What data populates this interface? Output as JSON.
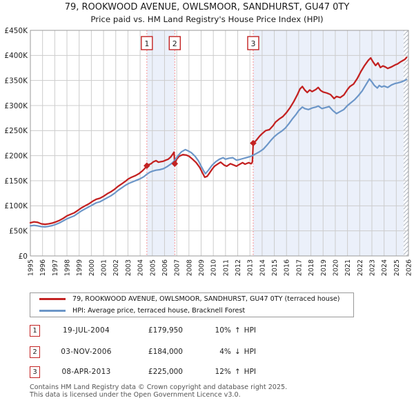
{
  "title": {
    "line1": "79, ROOKWOOD AVENUE, OWLSMOOR, SANDHURST, GU47 0TY",
    "line2": "Price paid vs. HM Land Registry's House Price Index (HPI)"
  },
  "chart_data": {
    "type": "line",
    "x_axis": {
      "min": 1995,
      "max": 2026,
      "tick_labels": [
        "1995",
        "1996",
        "1997",
        "1998",
        "1999",
        "2000",
        "2001",
        "2002",
        "2003",
        "2004",
        "2005",
        "2006",
        "2007",
        "2008",
        "2009",
        "2010",
        "2011",
        "2012",
        "2013",
        "2014",
        "2015",
        "2016",
        "2017",
        "2018",
        "2019",
        "2020",
        "2021",
        "2022",
        "2023",
        "2024",
        "2025",
        "2026"
      ]
    },
    "y_axis": {
      "max_k": 450,
      "ticks": [
        {
          "v": 0,
          "label": "£0"
        },
        {
          "v": 50,
          "label": "£50K"
        },
        {
          "v": 100,
          "label": "£100K"
        },
        {
          "v": 150,
          "label": "£150K"
        },
        {
          "v": 200,
          "label": "£200K"
        },
        {
          "v": 250,
          "label": "£250K"
        },
        {
          "v": 300,
          "label": "£300K"
        },
        {
          "v": 350,
          "label": "£350K"
        },
        {
          "v": 400,
          "label": "£400K"
        },
        {
          "v": 450,
          "label": "£450K"
        }
      ]
    },
    "grid": true,
    "colors": {
      "grid": "#cccccc",
      "border": "#999999",
      "band": "#ebf0fa",
      "sale_line": "#fa7070",
      "flag_border": "#c32222",
      "flag_text": "#222222",
      "hatch_line": "#b0b6bf",
      "hatch_bg": "#fbfcfe"
    },
    "shaded_bands": [
      [
        2004.55,
        2006.84
      ],
      [
        2013.27,
        2026
      ]
    ],
    "hatch_band": [
      2025.6,
      2026
    ],
    "series": [
      {
        "name": "property",
        "color": "#c32222",
        "width": 2.3,
        "points": [
          [
            1995.0,
            66
          ],
          [
            1995.3,
            68
          ],
          [
            1995.6,
            67
          ],
          [
            1995.9,
            64
          ],
          [
            1996.2,
            63
          ],
          [
            1996.5,
            64
          ],
          [
            1996.8,
            65.5
          ],
          [
            1997.1,
            68
          ],
          [
            1997.4,
            71
          ],
          [
            1997.7,
            75
          ],
          [
            1998.0,
            80
          ],
          [
            1998.3,
            83
          ],
          [
            1998.6,
            86
          ],
          [
            1998.9,
            91
          ],
          [
            1999.2,
            96
          ],
          [
            1999.5,
            100
          ],
          [
            1999.8,
            104
          ],
          [
            2000.1,
            109
          ],
          [
            2000.4,
            113
          ],
          [
            2000.7,
            115
          ],
          [
            2001.0,
            119
          ],
          [
            2001.3,
            124
          ],
          [
            2001.6,
            128
          ],
          [
            2001.9,
            133
          ],
          [
            2002.2,
            139
          ],
          [
            2002.5,
            144
          ],
          [
            2002.8,
            149
          ],
          [
            2003.0,
            153
          ],
          [
            2003.3,
            157
          ],
          [
            2003.6,
            160
          ],
          [
            2003.9,
            164
          ],
          [
            2004.2,
            170
          ],
          [
            2004.4,
            175
          ],
          [
            2004.55,
            180
          ],
          [
            2004.7,
            182
          ],
          [
            2004.9,
            184
          ],
          [
            2005.1,
            188
          ],
          [
            2005.3,
            190
          ],
          [
            2005.5,
            187
          ],
          [
            2005.7,
            188
          ],
          [
            2005.9,
            189
          ],
          [
            2006.1,
            191
          ],
          [
            2006.3,
            193
          ],
          [
            2006.5,
            197
          ],
          [
            2006.7,
            204
          ],
          [
            2006.78,
            207
          ],
          [
            2006.84,
            184
          ],
          [
            2007.0,
            193
          ],
          [
            2007.2,
            199
          ],
          [
            2007.5,
            202
          ],
          [
            2007.8,
            201
          ],
          [
            2008.0,
            199
          ],
          [
            2008.3,
            193
          ],
          [
            2008.6,
            186
          ],
          [
            2008.9,
            176
          ],
          [
            2009.1,
            166
          ],
          [
            2009.3,
            157
          ],
          [
            2009.5,
            159
          ],
          [
            2009.7,
            166
          ],
          [
            2009.9,
            173
          ],
          [
            2010.1,
            179
          ],
          [
            2010.4,
            184
          ],
          [
            2010.6,
            187
          ],
          [
            2010.9,
            181
          ],
          [
            2011.1,
            179
          ],
          [
            2011.4,
            184
          ],
          [
            2011.6,
            182
          ],
          [
            2011.9,
            179
          ],
          [
            2012.1,
            182
          ],
          [
            2012.4,
            186
          ],
          [
            2012.6,
            183
          ],
          [
            2012.9,
            186
          ],
          [
            2013.1,
            184
          ],
          [
            2013.2,
            187
          ],
          [
            2013.27,
            225
          ],
          [
            2013.5,
            230
          ],
          [
            2013.8,
            239
          ],
          [
            2014.0,
            244
          ],
          [
            2014.3,
            250
          ],
          [
            2014.6,
            252
          ],
          [
            2014.9,
            260
          ],
          [
            2015.1,
            267
          ],
          [
            2015.4,
            273
          ],
          [
            2015.7,
            278
          ],
          [
            2016.0,
            286
          ],
          [
            2016.3,
            296
          ],
          [
            2016.6,
            308
          ],
          [
            2016.9,
            322
          ],
          [
            2017.1,
            333
          ],
          [
            2017.3,
            338
          ],
          [
            2017.5,
            331
          ],
          [
            2017.7,
            326
          ],
          [
            2017.9,
            331
          ],
          [
            2018.1,
            328
          ],
          [
            2018.4,
            332
          ],
          [
            2018.6,
            336
          ],
          [
            2018.8,
            330
          ],
          [
            2019.0,
            327
          ],
          [
            2019.3,
            325
          ],
          [
            2019.6,
            322
          ],
          [
            2019.9,
            314
          ],
          [
            2020.1,
            318
          ],
          [
            2020.4,
            316
          ],
          [
            2020.7,
            321
          ],
          [
            2021.0,
            332
          ],
          [
            2021.2,
            338
          ],
          [
            2021.5,
            343
          ],
          [
            2021.8,
            354
          ],
          [
            2022.1,
            368
          ],
          [
            2022.4,
            380
          ],
          [
            2022.7,
            390
          ],
          [
            2022.9,
            395
          ],
          [
            2023.1,
            387
          ],
          [
            2023.3,
            380
          ],
          [
            2023.5,
            385
          ],
          [
            2023.7,
            376
          ],
          [
            2023.9,
            379
          ],
          [
            2024.1,
            377
          ],
          [
            2024.3,
            374
          ],
          [
            2024.6,
            377
          ],
          [
            2024.9,
            381
          ],
          [
            2025.1,
            383
          ],
          [
            2025.4,
            388
          ],
          [
            2025.7,
            392
          ],
          [
            2025.85,
            396
          ]
        ]
      },
      {
        "name": "hpi",
        "color": "#6c96c8",
        "width": 2.2,
        "points": [
          [
            1995.0,
            60
          ],
          [
            1995.3,
            61
          ],
          [
            1995.6,
            60
          ],
          [
            1995.9,
            58.5
          ],
          [
            1996.2,
            58
          ],
          [
            1996.5,
            59
          ],
          [
            1996.8,
            60.5
          ],
          [
            1997.1,
            63
          ],
          [
            1997.4,
            66
          ],
          [
            1997.7,
            70
          ],
          [
            1998.0,
            74
          ],
          [
            1998.3,
            77
          ],
          [
            1998.6,
            80
          ],
          [
            1998.9,
            85
          ],
          [
            1999.2,
            90
          ],
          [
            1999.5,
            94
          ],
          [
            1999.8,
            98
          ],
          [
            2000.1,
            102
          ],
          [
            2000.4,
            106
          ],
          [
            2000.7,
            108
          ],
          [
            2001.0,
            112
          ],
          [
            2001.3,
            116
          ],
          [
            2001.6,
            120
          ],
          [
            2001.9,
            125
          ],
          [
            2002.2,
            131
          ],
          [
            2002.5,
            136
          ],
          [
            2002.8,
            141
          ],
          [
            2003.1,
            145
          ],
          [
            2003.4,
            148
          ],
          [
            2003.7,
            151
          ],
          [
            2004.0,
            154
          ],
          [
            2004.3,
            158
          ],
          [
            2004.55,
            163
          ],
          [
            2004.8,
            167
          ],
          [
            2005.0,
            169
          ],
          [
            2005.3,
            171
          ],
          [
            2005.6,
            172
          ],
          [
            2005.9,
            174
          ],
          [
            2006.2,
            178
          ],
          [
            2006.5,
            183
          ],
          [
            2006.7,
            187
          ],
          [
            2006.84,
            191
          ],
          [
            2007.1,
            200
          ],
          [
            2007.4,
            208
          ],
          [
            2007.7,
            212
          ],
          [
            2007.9,
            210
          ],
          [
            2008.2,
            206
          ],
          [
            2008.5,
            199
          ],
          [
            2008.8,
            189
          ],
          [
            2009.0,
            179
          ],
          [
            2009.2,
            170
          ],
          [
            2009.35,
            164
          ],
          [
            2009.6,
            171
          ],
          [
            2009.9,
            181
          ],
          [
            2010.2,
            188
          ],
          [
            2010.5,
            193
          ],
          [
            2010.8,
            196
          ],
          [
            2011.0,
            193
          ],
          [
            2011.3,
            195
          ],
          [
            2011.6,
            196
          ],
          [
            2011.9,
            191
          ],
          [
            2012.1,
            192
          ],
          [
            2012.4,
            194
          ],
          [
            2012.7,
            196
          ],
          [
            2013.0,
            198
          ],
          [
            2013.27,
            201
          ],
          [
            2013.5,
            204
          ],
          [
            2013.8,
            208
          ],
          [
            2014.1,
            213
          ],
          [
            2014.4,
            221
          ],
          [
            2014.7,
            230
          ],
          [
            2015.0,
            238
          ],
          [
            2015.3,
            244
          ],
          [
            2015.6,
            249
          ],
          [
            2015.9,
            255
          ],
          [
            2016.2,
            264
          ],
          [
            2016.5,
            274
          ],
          [
            2016.8,
            283
          ],
          [
            2017.0,
            290
          ],
          [
            2017.3,
            297
          ],
          [
            2017.5,
            294
          ],
          [
            2017.8,
            292
          ],
          [
            2018.1,
            295
          ],
          [
            2018.4,
            297
          ],
          [
            2018.6,
            299
          ],
          [
            2018.9,
            294
          ],
          [
            2019.2,
            296
          ],
          [
            2019.5,
            298
          ],
          [
            2019.8,
            290
          ],
          [
            2020.1,
            284
          ],
          [
            2020.4,
            288
          ],
          [
            2020.7,
            292
          ],
          [
            2021.0,
            300
          ],
          [
            2021.3,
            306
          ],
          [
            2021.6,
            312
          ],
          [
            2021.9,
            320
          ],
          [
            2022.2,
            329
          ],
          [
            2022.5,
            341
          ],
          [
            2022.8,
            353
          ],
          [
            2023.0,
            347
          ],
          [
            2023.2,
            340
          ],
          [
            2023.45,
            335
          ],
          [
            2023.6,
            340
          ],
          [
            2023.8,
            337
          ],
          [
            2024.0,
            339
          ],
          [
            2024.3,
            336
          ],
          [
            2024.6,
            341
          ],
          [
            2024.9,
            344
          ],
          [
            2025.1,
            345
          ],
          [
            2025.4,
            347
          ],
          [
            2025.7,
            350
          ],
          [
            2025.85,
            352
          ]
        ]
      }
    ],
    "sales": [
      {
        "flag": "1",
        "year": 2004.55,
        "price_k": 179.95
      },
      {
        "flag": "2",
        "year": 2006.84,
        "price_k": 184
      },
      {
        "flag": "3",
        "year": 2013.27,
        "price_k": 225
      }
    ]
  },
  "legend": {
    "items": [
      {
        "label": "79, ROOKWOOD AVENUE, OWLSMOOR, SANDHURST, GU47 0TY (terraced house)",
        "color": "#c32222"
      },
      {
        "label": "HPI: Average price, terraced house, Bracknell Forest",
        "color": "#6c96c8"
      }
    ]
  },
  "transactions": [
    {
      "num": "1",
      "date": "19-JUL-2004",
      "price": "£179,950",
      "pct": "10%",
      "dir": "↑",
      "ref": "HPI"
    },
    {
      "num": "2",
      "date": "03-NOV-2006",
      "price": "£184,000",
      "pct": "4%",
      "dir": "↓",
      "ref": "HPI"
    },
    {
      "num": "3",
      "date": "08-APR-2013",
      "price": "£225,000",
      "pct": "12%",
      "dir": "↑",
      "ref": "HPI"
    }
  ],
  "footer": {
    "line1": "Contains HM Land Registry data © Crown copyright and database right 2025.",
    "line2": "This data is licensed under the Open Government Licence v3.0."
  }
}
